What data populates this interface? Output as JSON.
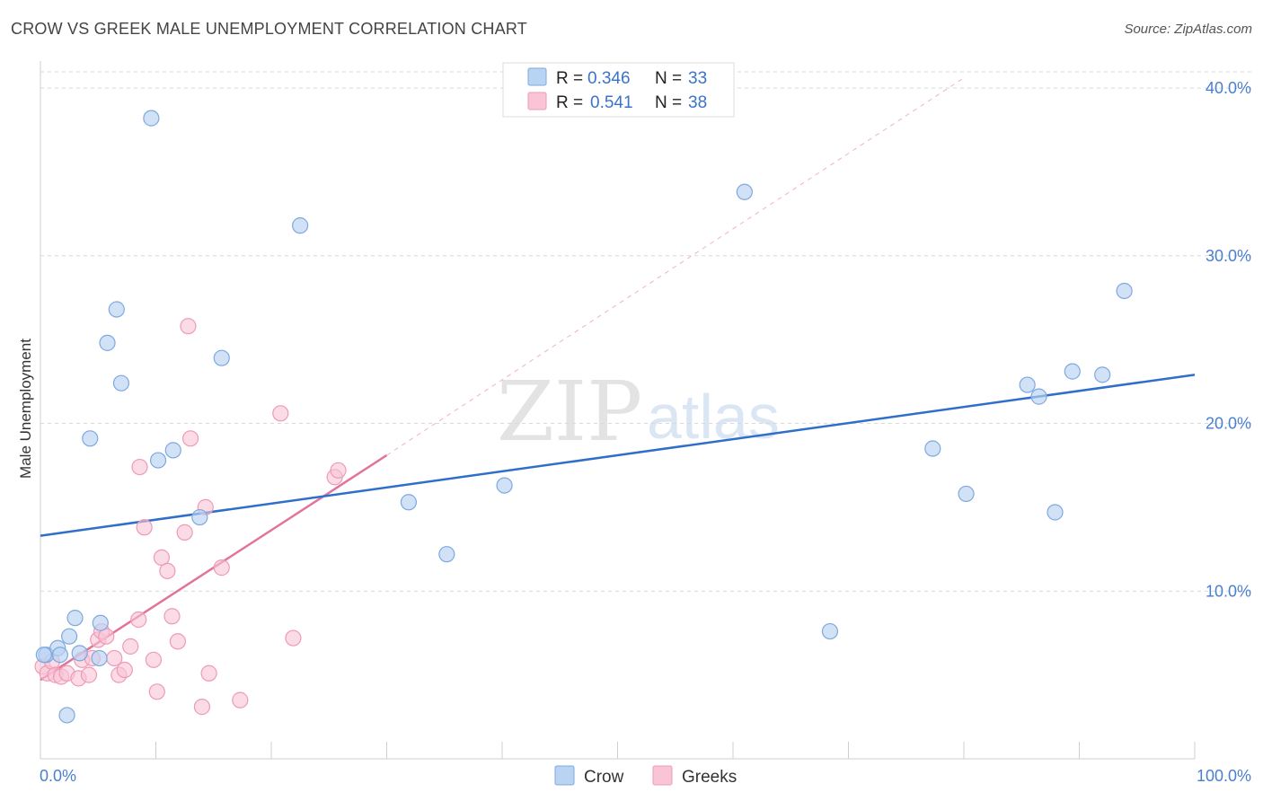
{
  "header": {
    "title": "CROW VS GREEK MALE UNEMPLOYMENT CORRELATION CHART",
    "source": "Source: ZipAtlas.com"
  },
  "watermark": {
    "part1": "ZIP",
    "part2": "atlas"
  },
  "colors": {
    "crow_fill": "#b9d3f3",
    "crow_stroke": "#7fa8de",
    "crow_line": "#2f6fc9",
    "greek_fill": "#f9c5d6",
    "greek_stroke": "#ee9ab5",
    "greek_line": "#e2739b",
    "accent_text": "#3a73c8",
    "grid": "#d9d9d9"
  },
  "legend_top": [
    {
      "r_label": "R =",
      "r_value": "0.346",
      "n_label": "N =",
      "n_value": "33",
      "series": "crow"
    },
    {
      "r_label": "R =",
      "r_value": "0.541",
      "n_label": "N =",
      "n_value": "38",
      "series": "greeks"
    }
  ],
  "chart_data": {
    "type": "scatter",
    "title": "CROW VS GREEK MALE UNEMPLOYMENT CORRELATION CHART",
    "xlabel": "",
    "ylabel": "Male Unemployment",
    "xlim": [
      0,
      100
    ],
    "ylim": [
      0,
      40
    ],
    "y_ticks": [
      10,
      20,
      30,
      40
    ],
    "y_tick_labels": [
      "10.0%",
      "20.0%",
      "30.0%",
      "40.0%"
    ],
    "x_tick_labels": [
      "0.0%",
      "100.0%"
    ],
    "x_minor_ticks": [
      10,
      20,
      30,
      40,
      50,
      60,
      70,
      80,
      90
    ],
    "grid": true,
    "legend_position": "bottom-center",
    "series": [
      {
        "name": "Crow",
        "points": [
          [
            9.6,
            38.2
          ],
          [
            0.5,
            6.2
          ],
          [
            1.5,
            6.6
          ],
          [
            1.7,
            6.2
          ],
          [
            2.5,
            7.3
          ],
          [
            3.0,
            8.4
          ],
          [
            3.4,
            6.3
          ],
          [
            4.3,
            19.1
          ],
          [
            5.1,
            6.0
          ],
          [
            5.2,
            8.1
          ],
          [
            5.8,
            24.8
          ],
          [
            6.6,
            26.8
          ],
          [
            7.0,
            22.4
          ],
          [
            10.2,
            17.8
          ],
          [
            11.5,
            18.4
          ],
          [
            13.8,
            14.4
          ],
          [
            15.7,
            23.9
          ],
          [
            22.5,
            31.8
          ],
          [
            31.9,
            15.3
          ],
          [
            35.2,
            12.2
          ],
          [
            40.2,
            16.3
          ],
          [
            61.0,
            33.8
          ],
          [
            68.4,
            7.6
          ],
          [
            77.3,
            18.5
          ],
          [
            80.2,
            15.8
          ],
          [
            85.5,
            22.3
          ],
          [
            86.5,
            21.6
          ],
          [
            87.9,
            14.7
          ],
          [
            89.4,
            23.1
          ],
          [
            92.0,
            22.9
          ],
          [
            93.9,
            27.9
          ],
          [
            2.3,
            2.6
          ],
          [
            0.3,
            6.2
          ]
        ],
        "trend": {
          "x": [
            0,
            100
          ],
          "y": [
            13.3,
            22.9
          ]
        }
      },
      {
        "name": "Greeks",
        "points": [
          [
            0.2,
            5.5
          ],
          [
            0.6,
            5.1
          ],
          [
            1.0,
            5.8
          ],
          [
            1.3,
            5.0
          ],
          [
            1.8,
            4.9
          ],
          [
            2.3,
            5.1
          ],
          [
            3.3,
            4.8
          ],
          [
            3.6,
            5.9
          ],
          [
            4.2,
            5.0
          ],
          [
            4.5,
            6.0
          ],
          [
            5.0,
            7.1
          ],
          [
            5.3,
            7.6
          ],
          [
            5.7,
            7.3
          ],
          [
            6.4,
            6.0
          ],
          [
            6.8,
            5.0
          ],
          [
            7.3,
            5.3
          ],
          [
            7.8,
            6.7
          ],
          [
            8.5,
            8.3
          ],
          [
            8.6,
            17.4
          ],
          [
            9.0,
            13.8
          ],
          [
            9.8,
            5.9
          ],
          [
            10.1,
            4.0
          ],
          [
            10.5,
            12.0
          ],
          [
            11.0,
            11.2
          ],
          [
            11.4,
            8.5
          ],
          [
            11.9,
            7.0
          ],
          [
            12.5,
            13.5
          ],
          [
            12.8,
            25.8
          ],
          [
            13.0,
            19.1
          ],
          [
            14.3,
            15.0
          ],
          [
            14.6,
            5.1
          ],
          [
            14.0,
            3.1
          ],
          [
            15.7,
            11.4
          ],
          [
            17.3,
            3.5
          ],
          [
            20.8,
            20.6
          ],
          [
            21.9,
            7.2
          ],
          [
            25.5,
            16.8
          ],
          [
            25.8,
            17.2
          ]
        ],
        "trend": {
          "x": [
            0,
            30
          ],
          "y": [
            4.7,
            18.1
          ]
        },
        "trend_extension": {
          "x": [
            30,
            80
          ],
          "y": [
            18.1,
            40.6
          ]
        }
      }
    ]
  },
  "legend_bottom": [
    {
      "label": "Crow",
      "series": "crow"
    },
    {
      "label": "Greeks",
      "series": "greeks"
    }
  ]
}
